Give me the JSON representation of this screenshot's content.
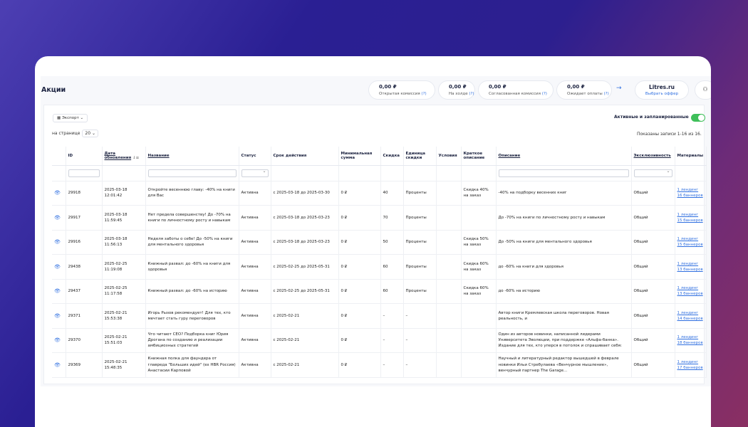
{
  "page": {
    "title": "Акции"
  },
  "stats": [
    {
      "value": "0,00 ₽",
      "label": "Открытая комиссия",
      "q": "(?)"
    },
    {
      "value": "0,00 ₽",
      "label": "На холде",
      "q": "(?)"
    },
    {
      "value": "0,00 ₽",
      "label": "Согласованная комиссия",
      "q": "(?)"
    },
    {
      "value": "0,00 ₽",
      "label": "Ожидает оплаты",
      "q": "(?)"
    }
  ],
  "offer": {
    "name": "Litres.ru",
    "action": "Выбрать оффер"
  },
  "toolbar": {
    "export_label": "Экспорт",
    "perpage_label": "на странице",
    "perpage_value": "20",
    "toggle_label": "Активные и запланированные",
    "records": "Показаны записи 1-16 из 16."
  },
  "columns": [
    "",
    "ID",
    "Дата обновления",
    "Название",
    "Статус",
    "Срок действия",
    "Минимальная сумма",
    "Скидка",
    "Единица скидки",
    "Условия",
    "Краткое описание",
    "Описание",
    "Эксклюзивность",
    "Материалы"
  ],
  "rows": [
    {
      "id": "29918",
      "date": "2025-03-18 12:01:42",
      "name": "Откройте весеннюю главу: -40% на книги для Вас",
      "status": "Активна",
      "period": "с 2025-03-18 до 2025-03-30",
      "min": "0 ₽",
      "discount": "40",
      "unit": "Проценты",
      "cond": "",
      "short": "Скидка 40% на заказ",
      "desc": "-40% на подборку весенних книг",
      "excl": "Общий",
      "mat": "1 лендинг 16 баннеров"
    },
    {
      "id": "29917",
      "date": "2025-03-18 11:59:45",
      "name": "Нет предела совершенству! До -70% на книги по личностному росту и навыкам",
      "status": "Активна",
      "period": "с 2025-03-18 до 2025-03-23",
      "min": "0 ₽",
      "discount": "70",
      "unit": "Проценты",
      "cond": "",
      "short": "",
      "desc": "До -70% на книги по личностному росту и навыкам",
      "excl": "Общий",
      "mat": "1 лендинг 15 баннеров"
    },
    {
      "id": "29916",
      "date": "2025-03-18 11:56:13",
      "name": "Неделя заботы о себе! До -50% на книги для ментального здоровья",
      "status": "Активна",
      "period": "с 2025-03-18 до 2025-03-23",
      "min": "0 ₽",
      "discount": "50",
      "unit": "Проценты",
      "cond": "",
      "short": "Скидка 50% на заказ",
      "desc": "До -50% на книги для ментального здоровья",
      "excl": "Общий",
      "mat": "1 лендинг 15 баннеров"
    },
    {
      "id": "29438",
      "date": "2025-02-25 11:19:08",
      "name": "Книжный развал: до -60% на книги для здоровья",
      "status": "Активна",
      "period": "с 2025-02-25 до 2025-05-31",
      "min": "0 ₽",
      "discount": "60",
      "unit": "Проценты",
      "cond": "",
      "short": "Скидка 60% на заказ",
      "desc": "до -60% на книги для здоровья",
      "excl": "Общий",
      "mat": "1 лендинг 13 баннеров"
    },
    {
      "id": "29437",
      "date": "2025-02-25 11:17:58",
      "name": "Книжный развал: до -60% на историю",
      "status": "Активна",
      "period": "с 2025-02-25 до 2025-05-31",
      "min": "0 ₽",
      "discount": "60",
      "unit": "Проценты",
      "cond": "",
      "short": "Скидка 60% на заказ",
      "desc": "до -60% на историю",
      "excl": "Общий",
      "mat": "1 лендинг 13 баннеров"
    },
    {
      "id": "29371",
      "date": "2025-02-21 15:53:38",
      "name": "Игорь Рызов рекомендует! Для тех, кто мечтает стать гуру переговоров",
      "status": "Активна",
      "period": "с 2025-02-21",
      "min": "0 ₽",
      "discount": "–",
      "unit": "–",
      "cond": "",
      "short": "",
      "desc": "Автор книги Кремлевская школа переговоров. Новая реальность, и",
      "excl": "Общий",
      "mat": "1 лендинг 14 баннеров"
    },
    {
      "id": "29370",
      "date": "2025-02-21 15:51:03",
      "name": "Что читают CEO? Подборка книг Юрия Дрогана по созданию и реализации амбициозных стратегий",
      "status": "Активна",
      "period": "с 2025-02-21",
      "min": "0 ₽",
      "discount": "–",
      "unit": "–",
      "cond": "",
      "short": "",
      "desc": "Один из авторов новинки, написанной лидерами Университета Эволюции, при поддержке «Альфа-банка». Издание для тех, кто уперся в потолок и спрашивает себя:",
      "excl": "Общий",
      "mat": "1 лендинг 18 баннеров"
    },
    {
      "id": "29369",
      "date": "2025-02-21 15:48:35",
      "name": "Книжная полка для фаундера от главреда \"Больших идей\" (ex HBR Россия) Анастасии Карповой",
      "status": "Активна",
      "period": "с 2025-02-21",
      "min": "0 ₽",
      "discount": "–",
      "unit": "–",
      "cond": "",
      "short": "",
      "desc": "Научный и литературный редактор вышедшей в феврале новинки Ильи Стребулаева «Венчурное мышление», венчурный партнер The Garage...",
      "excl": "Общий",
      "mat": "1 лендинг 17 баннеров"
    }
  ]
}
